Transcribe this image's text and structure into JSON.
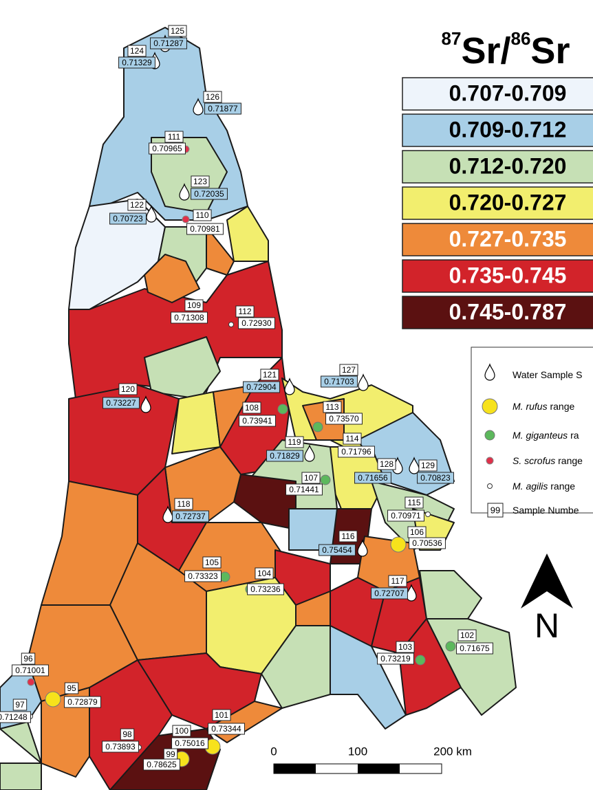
{
  "title": {
    "sup1": "87",
    "main1": "Sr/",
    "sup2": "86",
    "main2": "Sr"
  },
  "ranges": [
    {
      "label": "0.707-0.709",
      "color": "#eef4fb",
      "text_color": "#000000"
    },
    {
      "label": "0.709-0.712",
      "color": "#a8cfe7",
      "text_color": "#000000"
    },
    {
      "label": "0.712-0.720",
      "color": "#c6e0b5",
      "text_color": "#000000"
    },
    {
      "label": "0.720-0.727",
      "color": "#f2ee6e",
      "text_color": "#000000"
    },
    {
      "label": "0.727-0.735",
      "color": "#ee8a3a",
      "text_color": "#ffffff"
    },
    {
      "label": "0.735-0.745",
      "color": "#d2232a",
      "text_color": "#ffffff"
    },
    {
      "label": "0.745-0.787",
      "color": "#5b1111",
      "text_color": "#ffffff"
    }
  ],
  "symbols": [
    {
      "type": "water",
      "text": "Water Sample S"
    },
    {
      "type": "rufus",
      "species": "M. rufus",
      "text": "range"
    },
    {
      "type": "giganteus",
      "species": "M. giganteus",
      "text": "ra"
    },
    {
      "type": "scrofus",
      "species": "S. scrofus",
      "text": "range"
    },
    {
      "type": "agilis",
      "species": "M. agilis",
      "text": "range"
    },
    {
      "type": "number",
      "box": "99",
      "text": "Sample Numbe"
    }
  ],
  "samples": [
    {
      "id": "125",
      "value": "0.71287",
      "type": "water"
    },
    {
      "id": "124",
      "value": "0.71329",
      "type": "water"
    },
    {
      "id": "126",
      "value": "0.71877",
      "type": "water"
    },
    {
      "id": "111",
      "value": "0.70965",
      "type": "scrofus"
    },
    {
      "id": "123",
      "value": "0.72035",
      "type": "water"
    },
    {
      "id": "122",
      "value": "0.70723",
      "type": "water"
    },
    {
      "id": "110",
      "value": "0.70981",
      "type": "scrofus"
    },
    {
      "id": "109",
      "value": "0.71308",
      "type": "agilis"
    },
    {
      "id": "112",
      "value": "0.72930",
      "type": "agilis"
    },
    {
      "id": "121",
      "value": "0.72904",
      "type": "water"
    },
    {
      "id": "127",
      "value": "0.71703",
      "type": "water"
    },
    {
      "id": "120",
      "value": "0.73227",
      "type": "water"
    },
    {
      "id": "108",
      "value": "0.73941",
      "type": "giganteus"
    },
    {
      "id": "113",
      "value": "0.73570",
      "type": "giganteus"
    },
    {
      "id": "114",
      "value": "0.71796",
      "type": "agilis"
    },
    {
      "id": "119",
      "value": "0.71829",
      "type": "water"
    },
    {
      "id": "128",
      "value": "0.71656",
      "type": "water"
    },
    {
      "id": "129",
      "value": "0.70823",
      "type": "water"
    },
    {
      "id": "107",
      "value": "0.71441",
      "type": "giganteus"
    },
    {
      "id": "118",
      "value": "0.72737",
      "type": "water"
    },
    {
      "id": "115",
      "value": "0.70971",
      "type": "agilis"
    },
    {
      "id": "116",
      "value": "0.75454",
      "type": "water"
    },
    {
      "id": "106",
      "value": "0.70536",
      "type": "rufus"
    },
    {
      "id": "105",
      "value": "0.73323",
      "type": "giganteus"
    },
    {
      "id": "104",
      "value": "0.73236",
      "type": "giganteus"
    },
    {
      "id": "117",
      "value": "0.72707",
      "type": "water"
    },
    {
      "id": "102",
      "value": "0.71675",
      "type": "giganteus"
    },
    {
      "id": "103",
      "value": "0.73219",
      "type": "giganteus"
    },
    {
      "id": "96",
      "value": "0.71001",
      "type": "scrofus"
    },
    {
      "id": "95",
      "value": "0.72879",
      "type": "rufus"
    },
    {
      "id": "97",
      "value": "0.71248",
      "type": "agilis"
    },
    {
      "id": "101",
      "value": "0.73344",
      "type": "rufus"
    },
    {
      "id": "100",
      "value": "0.75016",
      "type": "rufus"
    },
    {
      "id": "98",
      "value": "0.73893",
      "type": "agilis"
    },
    {
      "id": "99",
      "value": "0.78625",
      "type": "agilis"
    }
  ],
  "scale": [
    "0",
    "100",
    "200 km"
  ],
  "north": "N"
}
